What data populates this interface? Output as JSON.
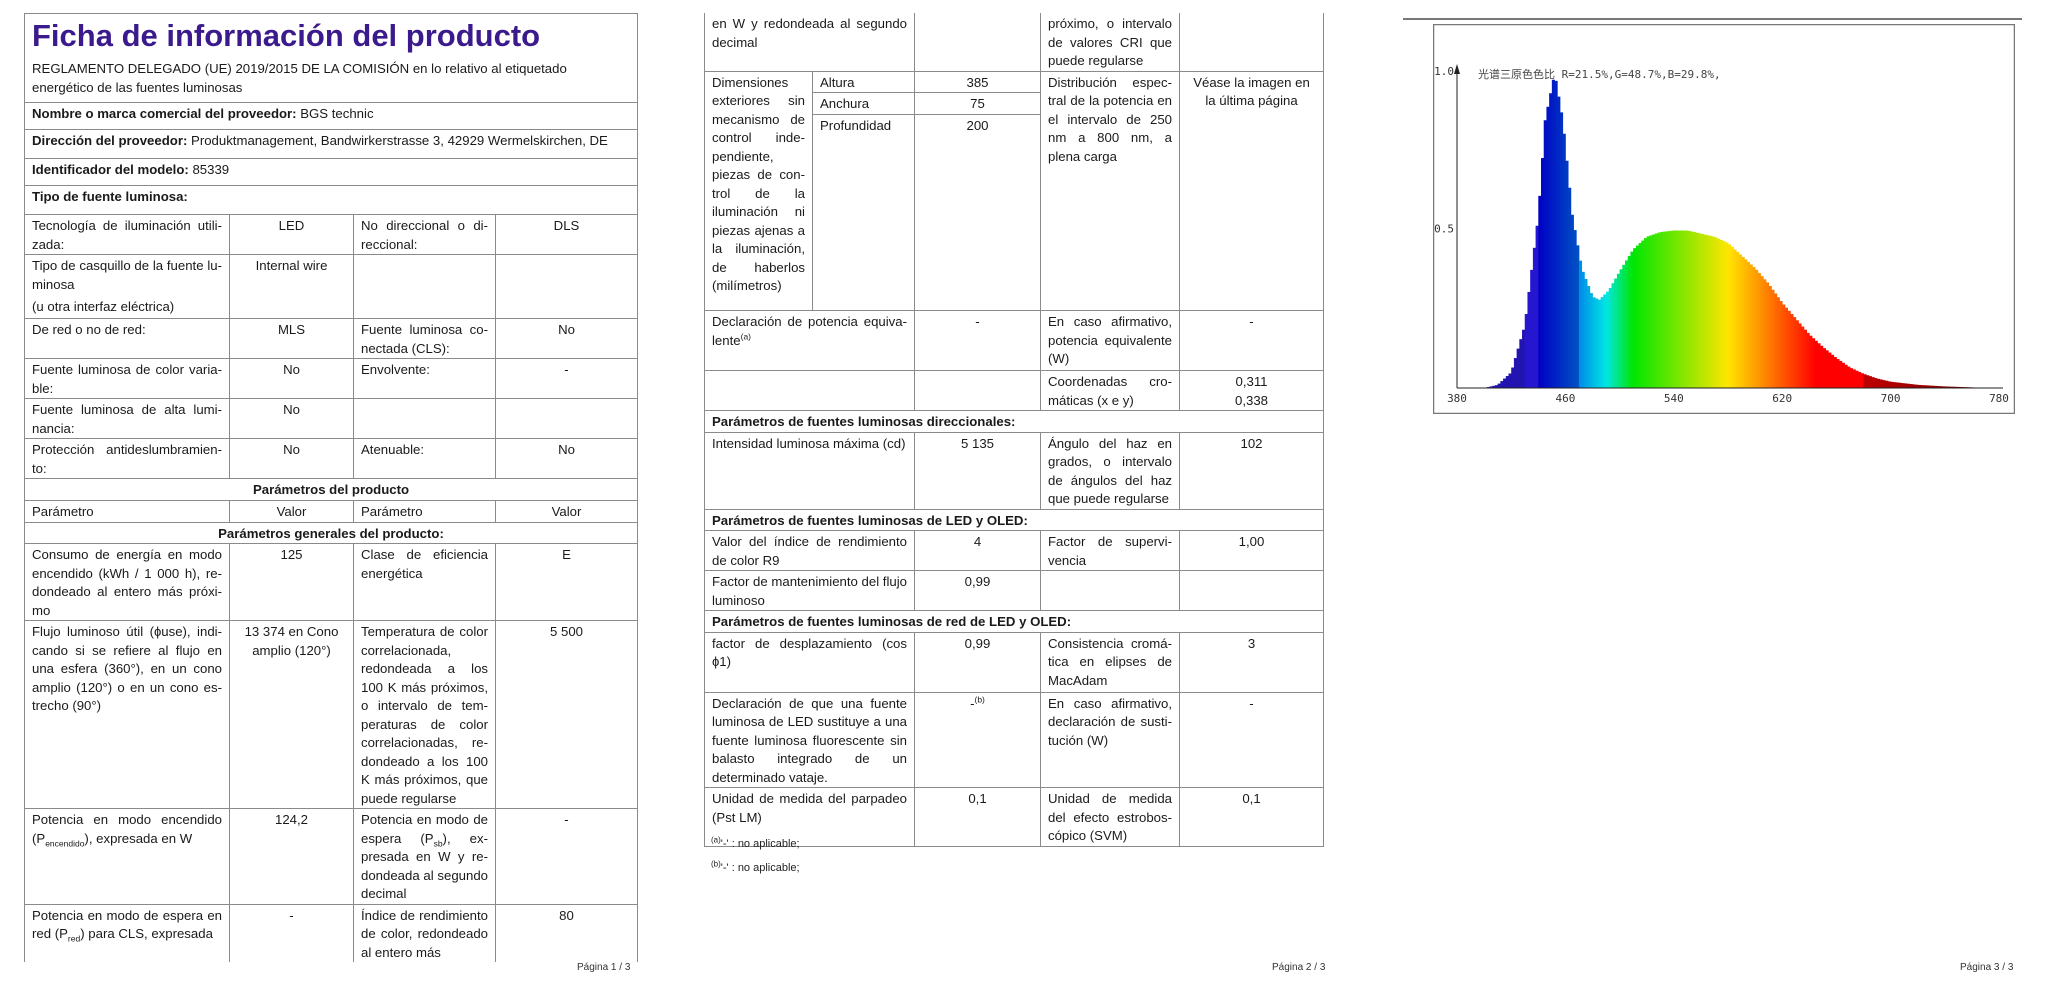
{
  "page1": {
    "title": "Ficha de información del producto",
    "regulation": "REGLAMENTO DELEGADO (UE) 2019/2015 DE LA COMISIÓN en lo relativo al etiquetado energético de las fuentes luminosas",
    "rows": [
      [
        {
          "label": "Nombre o marca comercial del proveedor:",
          "text": "  BGS technic"
        }
      ],
      [
        {
          "label": "Dirección del proveedor:",
          "text": "  Produktmanagement, Bandwirkerstrasse 3, 42929 Wermelskirchen, DE"
        }
      ],
      [
        {
          "label": "Identificador del modelo:",
          "text": "  85339"
        }
      ],
      [
        {
          "label": "Tipo de fuente luminosa:"
        }
      ],
      [
        {
          "text": "Tecnología de iluminación utili­zada:"
        },
        {
          "text": "LED"
        },
        {
          "text": "No direccional o di­reccional:"
        },
        {
          "text": "DLS"
        }
      ],
      [
        {
          "text": "Tipo de casquillo de la fuente lu­minosa",
          "text2": "(u otra interfaz eléctrica)"
        },
        {
          "text": "Internal wire"
        },
        {
          "text": ""
        },
        {
          "text": ""
        }
      ],
      [
        {
          "text": "De red o no de red:"
        },
        {
          "text": "MLS"
        },
        {
          "text": "Fuente luminosa co­nectada (CLS):"
        },
        {
          "text": "No"
        }
      ],
      [
        {
          "text": "Fuente luminosa de color varia­ble:"
        },
        {
          "text": "No"
        },
        {
          "text": "Envolvente:"
        },
        {
          "text": "-"
        }
      ],
      [
        {
          "text": "Fuente luminosa de alta lumi­nancia:"
        },
        {
          "text": "No"
        },
        {
          "text": ""
        },
        {
          "text": ""
        }
      ],
      [
        {
          "text": "Protección antideslumbramien­to:"
        },
        {
          "text": "No"
        },
        {
          "text": "Atenuable:"
        },
        {
          "text": "No"
        }
      ],
      [
        {
          "text": "Parámetros del producto"
        }
      ],
      [
        {
          "text": "Parámetro"
        },
        {
          "text": "Valor"
        },
        {
          "text": "Parámetro"
        },
        {
          "text": "Valor"
        }
      ],
      [
        {
          "text": "Parámetros generales del producto:"
        }
      ],
      [
        {
          "text": "Consumo de energía en modo encendido (kWh / 1 000 h), re­dondeado al entero más próxi­mo"
        },
        {
          "text": "125"
        },
        {
          "text": "Clase de eficiencia energética"
        },
        {
          "text": "E"
        }
      ],
      [
        {
          "text": "Flujo luminoso útil (ɸuse), indi­cando si se refiere al flujo en una esfera (360°), en un cono amplio (120°) o en un cono es­trecho (90°)"
        },
        {
          "text": "13 374 en Cono amplio (120°)"
        },
        {
          "text": "Temperatura de co­lor correlacionada, redondeada a los 100 K más próximos, o intervalo de tem­peraturas de color correlacionadas, re­dondeado a los 100 K más próximos, que puede regularse"
        },
        {
          "text": "5 500"
        }
      ],
      [
        {
          "text": "Potencia en modo encendido (P",
          "sub": "encendido",
          "after": "), expresada en W"
        },
        {
          "text": "124,2"
        },
        {
          "text": "Potencia en modo de espera (P",
          "sub": "sb",
          "after": "), ex­presada en W y re­dondeada al segun­do decimal"
        },
        {
          "text": "-"
        }
      ],
      [
        {
          "text": "Potencia en modo de espera en red (P",
          "sub": "red",
          "after": ") para CLS, expresada"
        },
        {
          "text": "-"
        },
        {
          "text": "Índice de rendimien­to de color, redon­deado al entero más"
        },
        {
          "text": "80"
        }
      ]
    ],
    "page_label": "Página 1 / 3"
  },
  "page2": {
    "rows": [
      [
        {
          "text": "en W y redondeada al segundo decimal"
        },
        {
          "text": ""
        },
        {
          "text": "próximo, o interva­lo de valores CRI que puede regularse"
        },
        {
          "text": ""
        }
      ],
      [
        {
          "text": "Dimensiones exteriores sin mecanismo de control inde­pendiente, piezas de con­trol de la iluminación ni piezas ajenas a la ilumina­ción, de ha­berlos (milí­metros)"
        },
        {
          "text": "Altura"
        },
        {
          "text": "385"
        },
        {
          "text": "Distribución espec­tral de la potencia en el intervalo de 250 nm a 800 nm, a plena carga"
        },
        {
          "text": "Véase la imagen en la última página"
        }
      ],
      [
        {
          "text": "Anchura"
        },
        {
          "text": "75"
        }
      ],
      [
        {
          "text": "Profundidad"
        },
        {
          "text": "200"
        }
      ],
      [
        {
          "text": "Declaración de potencia equiva­lente",
          "sup": "(a)"
        },
        {
          "text": "-"
        },
        {
          "text": "En caso afirmativo, potencia equivalen­te (W)"
        },
        {
          "text": "-"
        }
      ],
      [
        {
          "text": ""
        },
        {
          "text": ""
        },
        {
          "text": "Coordenadas cro­máticas (x e y)"
        },
        {
          "text": "0,311",
          "text2": "0,338"
        }
      ],
      [
        {
          "text": "Parámetros de fuentes luminosas direccionales:"
        }
      ],
      [
        {
          "text": "Intensidad luminosa máxima (cd)"
        },
        {
          "text": "5 135"
        },
        {
          "text": "Ángulo del haz en grados, o intervalo de ángulos del haz que puede regularse"
        },
        {
          "text": "102"
        }
      ],
      [
        {
          "text": "Parámetros de fuentes luminosas de LED y OLED:"
        }
      ],
      [
        {
          "text": "Valor del índice de rendimiento de color R9"
        },
        {
          "text": "4"
        },
        {
          "text": "Factor de supervi­vencia"
        },
        {
          "text": "1,00"
        }
      ],
      [
        {
          "text": "Factor de mantenimiento del flujo luminoso"
        },
        {
          "text": "0,99"
        },
        {
          "text": ""
        },
        {
          "text": ""
        }
      ],
      [
        {
          "text": "Parámetros de fuentes luminosas de red de LED y OLED:"
        }
      ],
      [
        {
          "text": "factor de desplazamiento (cos ɸ1)"
        },
        {
          "text": "0,99"
        },
        {
          "text": "Consistencia cromá­tica en elipses de MacAdam"
        },
        {
          "text": "3"
        }
      ],
      [
        {
          "text": "Declaración de que una fuen­te luminosa de LED sustituye a una fuente luminosa fluores­cente sin balasto integrado de un determinado vataje."
        },
        {
          "text": "-",
          "sup": "(b)"
        },
        {
          "text": "En caso afirmativo, declaración de susti­tución (W)"
        },
        {
          "text": "-"
        }
      ],
      [
        {
          "text": "Unidad de medida del parpadeo (Pst LM)"
        },
        {
          "text": "0,1"
        },
        {
          "text": "Unidad de medida del efecto estrobos­cópico (SVM)"
        },
        {
          "text": "0,1"
        }
      ]
    ],
    "footnotes": [
      {
        "mark": "(a)",
        "text": "'-' : no aplicable;"
      },
      {
        "mark": "(b)",
        "text": "'-' : no aplicable;"
      }
    ],
    "page_label": "Página 2 / 3"
  },
  "page3": {
    "page_label": "Página 3 / 3"
  },
  "chart_data": {
    "type": "area",
    "annotation": "光谱三原色色比  R=21.5%,G=48.7%,B=29.8%,",
    "xlim": [
      380,
      780
    ],
    "ylim": [
      0,
      1.0
    ],
    "x_ticks": [
      "380",
      "460",
      "540",
      "620",
      "700",
      "780"
    ],
    "y_ticks": [
      "1.0",
      "0.5"
    ],
    "fill": "wavelength-colored spectrum",
    "x": [
      400,
      410,
      420,
      430,
      440,
      445,
      452,
      458,
      465,
      472,
      480,
      485,
      492,
      500,
      510,
      520,
      530,
      540,
      550,
      560,
      570,
      580,
      590,
      600,
      610,
      620,
      630,
      640,
      650,
      660,
      670,
      680,
      690,
      700,
      720,
      740,
      760,
      770
    ],
    "y": [
      0,
      0.01,
      0.05,
      0.2,
      0.55,
      0.85,
      1.0,
      0.85,
      0.55,
      0.38,
      0.29,
      0.28,
      0.31,
      0.37,
      0.44,
      0.48,
      0.495,
      0.5,
      0.5,
      0.49,
      0.48,
      0.46,
      0.42,
      0.38,
      0.33,
      0.27,
      0.22,
      0.17,
      0.13,
      0.095,
      0.065,
      0.045,
      0.03,
      0.02,
      0.01,
      0.005,
      0.002,
      0
    ]
  }
}
